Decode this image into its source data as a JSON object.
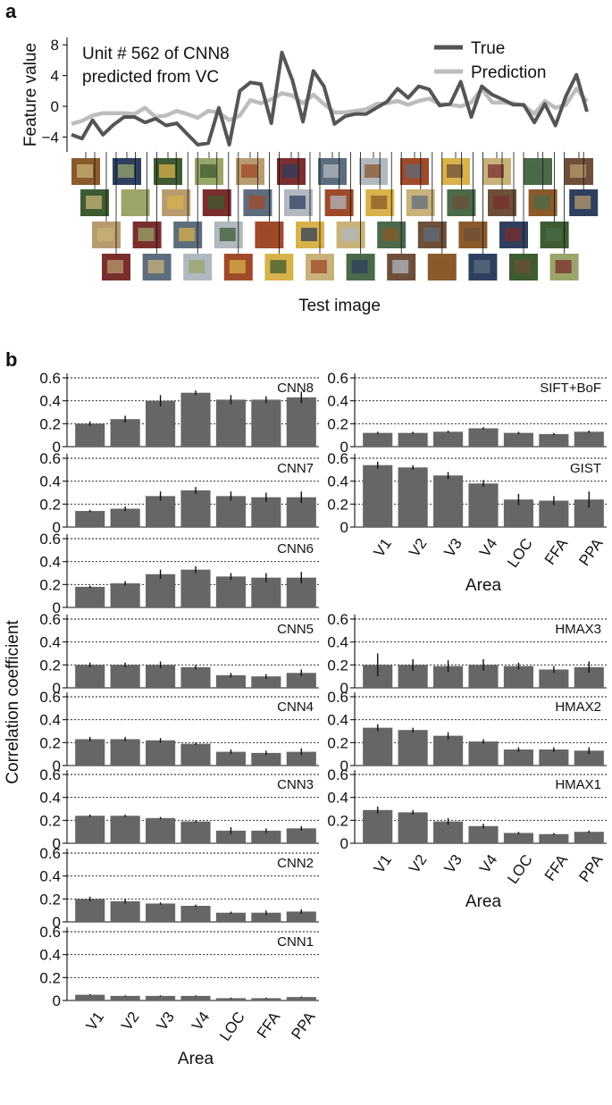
{
  "figure": {
    "label_a": "a",
    "label_b": "b"
  },
  "panel_a": {
    "annotation": [
      "Unit # 562 of CNN8",
      "predicted from VC"
    ],
    "ylabel": "Feature value",
    "xlabel": "Test image",
    "yticks": [
      "8",
      "4",
      "0",
      "−4"
    ],
    "colors": {
      "true": "#555555",
      "prediction": "#bdbdbd"
    }
  },
  "panel_b": {
    "ylabel": "Correlation coefficient",
    "xlabel": "Area",
    "yticks": [
      "0",
      "0.2",
      "0.4",
      "0.6"
    ],
    "categories": [
      "V1",
      "V2",
      "V3",
      "V4",
      "LOC",
      "FFA",
      "PPA"
    ],
    "bar_color": "#666666"
  },
  "chart_data": [
    {
      "type": "line",
      "annotation": "Unit # 562 of CNN8 predicted from VC",
      "xlabel": "Test image",
      "ylabel": "Feature value",
      "ylim": [
        -6,
        8
      ],
      "yticks": [
        8,
        4,
        0,
        -4
      ],
      "x": [
        1,
        2,
        3,
        4,
        5,
        6,
        7,
        8,
        9,
        10,
        11,
        12,
        13,
        14,
        15,
        16,
        17,
        18,
        19,
        20,
        21,
        22,
        23,
        24,
        25,
        26,
        27,
        28,
        29,
        30,
        31,
        32,
        33,
        34,
        35,
        36,
        37,
        38,
        39,
        40,
        41,
        42,
        43,
        44,
        45,
        46,
        47,
        48,
        49,
        50
      ],
      "series": [
        {
          "name": "True",
          "values": [
            -3.7,
            -4.2,
            -1.8,
            -3.7,
            -2.4,
            -1.4,
            -1.4,
            -2.1,
            -1.6,
            -2.5,
            -2.2,
            -3.6,
            -5.0,
            -4.8,
            -0.2,
            -5.0,
            2.0,
            3.1,
            2.9,
            -2.2,
            7.0,
            3.4,
            -2.0,
            4.6,
            2.6,
            -2.3,
            -1.3,
            -1.0,
            -1.0,
            -0.2,
            0.6,
            2.3,
            1.1,
            2.6,
            2.2,
            0.1,
            0.3,
            3.2,
            -1.4,
            2.6,
            1.5,
            0.9,
            0.2,
            0.2,
            -2.1,
            0.3,
            -2.5,
            1.3,
            4.1,
            -0.7
          ]
        },
        {
          "name": "Prediction",
          "values": [
            -2.3,
            -1.9,
            -1.2,
            -0.9,
            -0.9,
            -0.9,
            -1.0,
            -0.2,
            -1.4,
            -1.2,
            -0.6,
            -1.0,
            -1.5,
            -0.6,
            -0.8,
            -1.8,
            -1.2,
            0.8,
            0.4,
            0.9,
            1.7,
            1.4,
            0.4,
            1.5,
            0.3,
            -0.8,
            -0.8,
            -0.6,
            -0.4,
            0.3,
            0.4,
            0.7,
            0.2,
            0.7,
            1.0,
            0.3,
            0.2,
            0.0,
            0.5,
            2.3,
            0.5,
            0.5,
            0.4,
            0.1,
            -1.0,
            0.7,
            -0.2,
            0.2,
            2.3,
            0.6
          ]
        }
      ]
    },
    {
      "type": "bar",
      "xlabel": "Area",
      "ylabel": "Correlation coefficient",
      "categories": [
        "V1",
        "V2",
        "V3",
        "V4",
        "LOC",
        "FFA",
        "PPA"
      ],
      "ylim": [
        0,
        0.6
      ],
      "panels": [
        {
          "name": "CNN8",
          "values": [
            0.2,
            0.24,
            0.4,
            0.47,
            0.41,
            0.41,
            0.43
          ],
          "errors": [
            0.02,
            0.03,
            0.05,
            0.02,
            0.04,
            0.03,
            0.05
          ]
        },
        {
          "name": "CNN7",
          "values": [
            0.14,
            0.16,
            0.27,
            0.32,
            0.27,
            0.26,
            0.26
          ],
          "errors": [
            0.01,
            0.02,
            0.04,
            0.03,
            0.04,
            0.04,
            0.05
          ]
        },
        {
          "name": "CNN6",
          "values": [
            0.18,
            0.21,
            0.29,
            0.33,
            0.27,
            0.26,
            0.26
          ],
          "errors": [
            0.01,
            0.02,
            0.04,
            0.03,
            0.03,
            0.04,
            0.05
          ]
        },
        {
          "name": "CNN5",
          "values": [
            0.2,
            0.2,
            0.2,
            0.18,
            0.11,
            0.1,
            0.13
          ],
          "errors": [
            0.02,
            0.02,
            0.03,
            0.02,
            0.02,
            0.02,
            0.03
          ]
        },
        {
          "name": "CNN4",
          "values": [
            0.23,
            0.23,
            0.22,
            0.19,
            0.12,
            0.11,
            0.12
          ],
          "errors": [
            0.02,
            0.02,
            0.02,
            0.01,
            0.02,
            0.02,
            0.03
          ]
        },
        {
          "name": "CNN3",
          "values": [
            0.24,
            0.24,
            0.22,
            0.19,
            0.11,
            0.11,
            0.13
          ],
          "errors": [
            0.01,
            0.01,
            0.01,
            0.01,
            0.03,
            0.02,
            0.02
          ]
        },
        {
          "name": "CNN2",
          "values": [
            0.2,
            0.18,
            0.16,
            0.14,
            0.08,
            0.08,
            0.09
          ],
          "errors": [
            0.02,
            0.02,
            0.01,
            0.01,
            0.01,
            0.02,
            0.02
          ]
        },
        {
          "name": "CNN1",
          "values": [
            0.05,
            0.04,
            0.04,
            0.04,
            0.02,
            0.02,
            0.03
          ],
          "errors": [
            0.005,
            0.005,
            0.005,
            0.005,
            0.005,
            0.005,
            0.005
          ]
        },
        {
          "name": "SIFT+BoF",
          "values": [
            0.12,
            0.12,
            0.13,
            0.16,
            0.12,
            0.11,
            0.13
          ],
          "errors": [
            0.01,
            0.01,
            0.01,
            0.01,
            0.01,
            0.01,
            0.01
          ]
        },
        {
          "name": "GIST",
          "values": [
            0.54,
            0.52,
            0.45,
            0.38,
            0.24,
            0.23,
            0.24
          ],
          "errors": [
            0.03,
            0.02,
            0.03,
            0.03,
            0.05,
            0.04,
            0.07
          ]
        },
        {
          "name": "HMAX3",
          "values": [
            0.2,
            0.2,
            0.19,
            0.2,
            0.19,
            0.16,
            0.18
          ],
          "errors": [
            0.1,
            0.05,
            0.05,
            0.05,
            0.03,
            0.03,
            0.05
          ]
        },
        {
          "name": "HMAX2",
          "values": [
            0.33,
            0.31,
            0.26,
            0.21,
            0.14,
            0.14,
            0.13
          ],
          "errors": [
            0.03,
            0.02,
            0.03,
            0.02,
            0.02,
            0.02,
            0.03
          ]
        },
        {
          "name": "HMAX1",
          "values": [
            0.29,
            0.27,
            0.19,
            0.15,
            0.09,
            0.08,
            0.1
          ],
          "errors": [
            0.03,
            0.02,
            0.03,
            0.02,
            0.01,
            0.01,
            0.01
          ]
        }
      ]
    }
  ]
}
